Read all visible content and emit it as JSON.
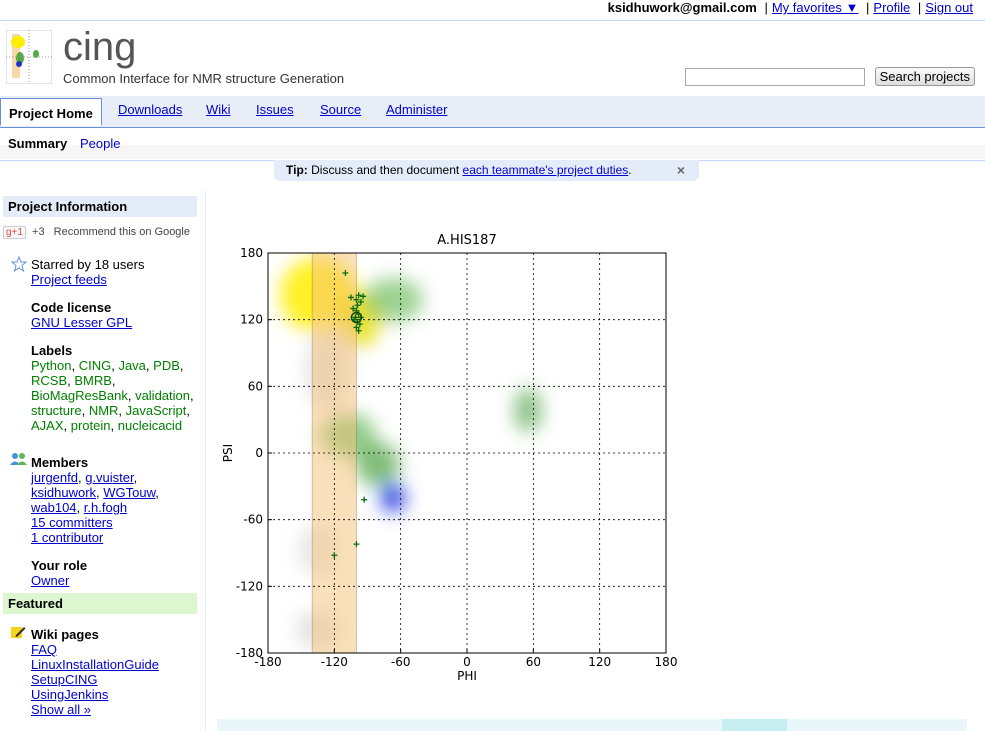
{
  "topbar": {
    "user": "ksidhuwork@gmail.com",
    "favorites": "My favorites ▼",
    "profile": "Profile",
    "signout": "Sign out"
  },
  "project": {
    "name": "cing",
    "summary": "Common Interface for NMR structure Generation"
  },
  "search": {
    "value": "",
    "button": "Search projects"
  },
  "tabs": [
    "Project Home",
    "Downloads",
    "Wiki",
    "Issues",
    "Source",
    "Administer"
  ],
  "subtabs": {
    "summary": "Summary",
    "people": "People"
  },
  "tip": {
    "label": "Tip:",
    "text": " Discuss and then document ",
    "link": "each teammate's project duties",
    "end": ".",
    "close": "×"
  },
  "sidebar": {
    "project_info": "Project Information",
    "gplus_count": "+3",
    "gplus_text": "Recommend this on Google",
    "gplus_btn": "g+1",
    "starred": "Starred by 18 users",
    "feeds": "Project feeds",
    "code_license_title": "Code license",
    "code_license": "GNU Lesser GPL",
    "labels_title": "Labels",
    "labels": [
      "Python",
      "CING",
      "Java",
      "PDB",
      "RCSB",
      "BMRB",
      "BioMagResBank",
      "validation",
      "structure",
      "NMR",
      "JavaScript",
      "AJAX",
      "protein",
      "nucleicacid"
    ],
    "members_title": "Members",
    "members": [
      "jurgenfd",
      "g.vuister",
      "ksidhuwork",
      "WGTouw",
      "wab104",
      "r.h.fogh"
    ],
    "committers": "15 committers",
    "contributor": "1 contributor",
    "role_title": "Your role",
    "role": "Owner",
    "featured": "Featured",
    "wiki_title": "Wiki pages",
    "wiki": [
      "FAQ",
      "LinuxInstallationGuide",
      "SetupCING",
      "UsingJenkins",
      "Show all »"
    ]
  },
  "chart_data": {
    "type": "scatter",
    "title": "A.HIS187",
    "xlabel": "PHI",
    "ylabel": "PSI",
    "xlim": [
      -180,
      180
    ],
    "ylim": [
      -180,
      180
    ],
    "xticks": [
      "-180",
      "-120",
      "-60",
      "0",
      "60",
      "120",
      "180"
    ],
    "yticks": [
      "180",
      "120",
      "60",
      "0",
      "-60",
      "-120",
      "-180"
    ],
    "grid": true,
    "highlight_band": [
      -140,
      -100
    ],
    "points": [
      [
        -110,
        162
      ],
      [
        -105,
        140
      ],
      [
        -100,
        138
      ],
      [
        -98,
        142
      ],
      [
        -96,
        136
      ],
      [
        -103,
        130
      ],
      [
        -100,
        128
      ],
      [
        -98,
        125
      ],
      [
        -101,
        122
      ],
      [
        -99,
        118
      ],
      [
        -97,
        116
      ],
      [
        -100,
        113
      ],
      [
        -98,
        110
      ],
      [
        -102,
        120
      ],
      [
        -96,
        122
      ],
      [
        -99,
        133
      ],
      [
        -94,
        141
      ],
      [
        -93,
        -42
      ],
      [
        -120,
        -92
      ],
      [
        -100,
        -82
      ]
    ],
    "circle_point": [
      -100,
      122
    ]
  }
}
